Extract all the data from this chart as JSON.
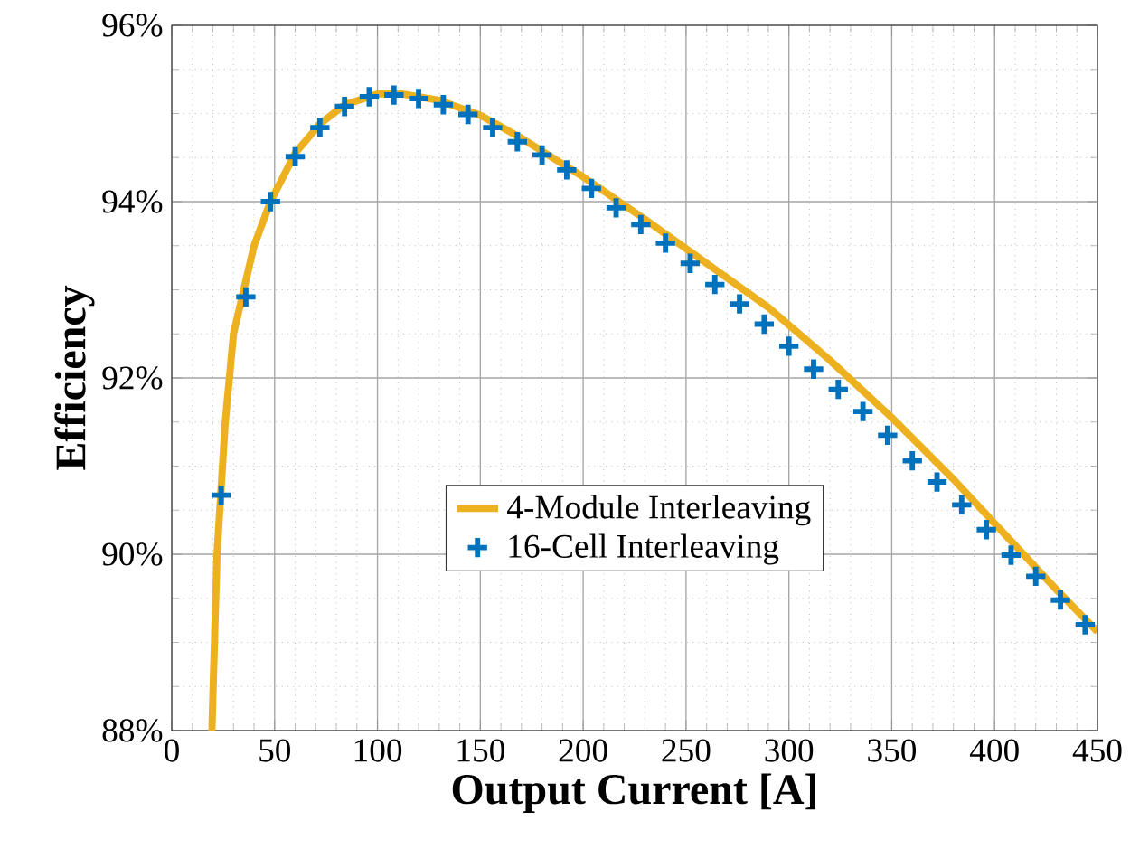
{
  "chart_data": {
    "type": "line",
    "xlabel": "Output Current [A]",
    "ylabel": "Efficiency",
    "xlim": [
      0,
      450
    ],
    "xticks": [
      0,
      50,
      100,
      150,
      200,
      250,
      300,
      350,
      400,
      450
    ],
    "ylim": [
      88,
      96
    ],
    "yticks": [
      {
        "value": 88,
        "label": "88%"
      },
      {
        "value": 90,
        "label": "90%"
      },
      {
        "value": 92,
        "label": "92%"
      },
      {
        "value": 94,
        "label": "94%"
      },
      {
        "value": 96,
        "label": "96%"
      }
    ],
    "grid": true,
    "legend": "bottom",
    "series": [
      {
        "name": "4-Module Interleaving",
        "color": "#edb120",
        "marker": "none",
        "line_style": "solid",
        "x": [
          19.5,
          22,
          26,
          30,
          40,
          48,
          60,
          72,
          84,
          100,
          110,
          130,
          150,
          170,
          200,
          230,
          260,
          290,
          320,
          350,
          380,
          410,
          430,
          450
        ],
        "values": [
          88,
          90,
          91.5,
          92.5,
          93.5,
          94.0,
          94.55,
          94.88,
          95.1,
          95.22,
          95.23,
          95.15,
          94.98,
          94.72,
          94.28,
          93.8,
          93.3,
          92.8,
          92.2,
          91.55,
          90.85,
          90.1,
          89.6,
          89.12
        ]
      },
      {
        "name": "16-Cell Interleaving",
        "type": "scatter",
        "color": "#0072bd",
        "marker": "cross",
        "x": [
          24,
          36,
          48,
          60,
          72,
          84,
          96,
          108,
          120,
          132,
          144,
          156,
          168,
          180,
          192,
          204,
          216,
          228,
          240,
          252,
          264,
          276,
          288,
          300,
          312,
          324,
          336,
          348,
          360,
          372,
          384,
          396,
          408,
          420,
          432,
          444
        ],
        "values": [
          90.67,
          92.92,
          94.0,
          94.51,
          94.84,
          95.08,
          95.19,
          95.21,
          95.17,
          95.1,
          94.99,
          94.84,
          94.68,
          94.53,
          94.36,
          94.15,
          93.93,
          93.74,
          93.53,
          93.3,
          93.06,
          92.84,
          92.61,
          92.36,
          92.1,
          91.87,
          91.62,
          91.35,
          91.06,
          90.82,
          90.56,
          90.28,
          89.99,
          89.75,
          89.48,
          89.2
        ]
      }
    ]
  }
}
